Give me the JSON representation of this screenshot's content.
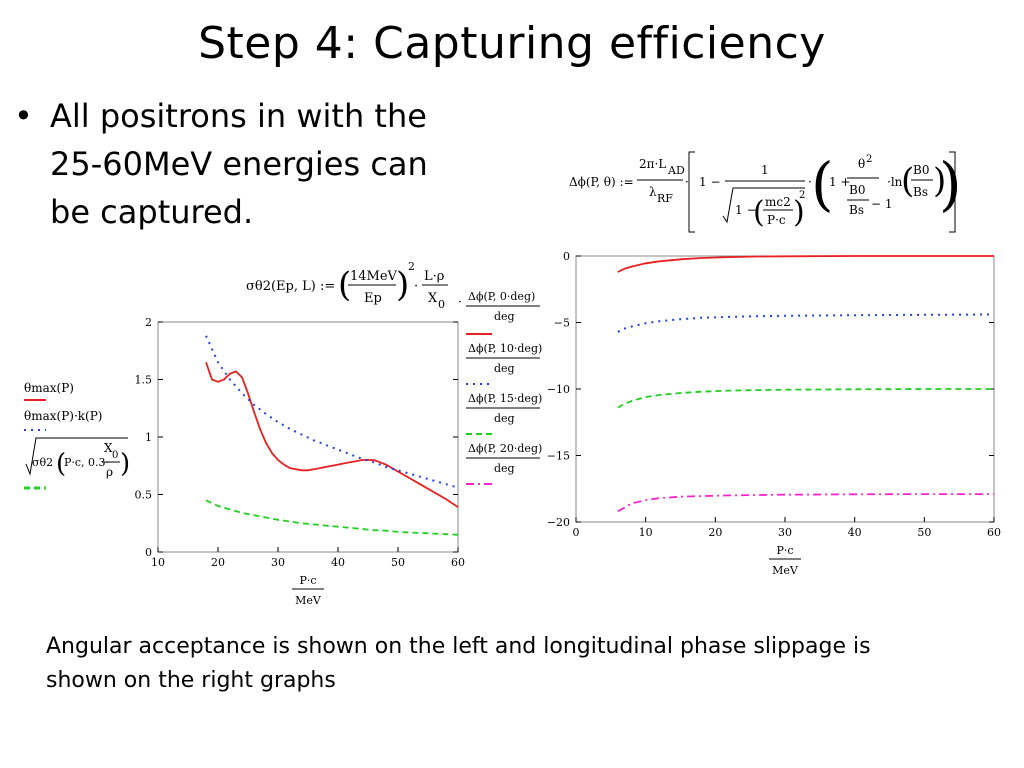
{
  "slide": {
    "title": "Step 4: Capturing efficiency",
    "bullet": "All positrons in with the 25-60MeV energies can be captured.",
    "caption": "Angular acceptance is shown on the left and longitudinal phase slippage is shown on the right graphs"
  },
  "formulas": {
    "sigma_lhs": "σθ2(Ep, L) :=",
    "sigma_num": "14MeV",
    "sigma_den": "Ep",
    "sigma_exp": "2",
    "sigma_dot": "·",
    "sigma_lnum": "L·ρ",
    "sigma_lden": "X",
    "sigma_lsub": "0",
    "dphi_lhs": "Δϕ(P, θ) :=",
    "dphi_num": "2π·L",
    "dphi_num_sub": "AD",
    "dphi_den": "λ",
    "dphi_den_sub": "RF",
    "dphi_one": "1 −",
    "dphi_inner_num": "1",
    "dphi_inner_one": "1 −",
    "dphi_mc2": "mc2",
    "dphi_pc": "P·c",
    "dphi_exp2": "2",
    "dphi_oneplus": "1 +",
    "dphi_theta": "θ",
    "dphi_theta_exp": "2",
    "dphi_b0": "B0",
    "dphi_bs": "Bs",
    "dphi_minus1": "− 1",
    "dphi_ln": "·ln",
    "dphi_b0b": "B0",
    "dphi_bsb": "Bs"
  },
  "left_legend": {
    "entries": [
      {
        "label": "θmax(P)",
        "color": "#e8201f",
        "dash": "solid"
      },
      {
        "label": "θmax(P)·k(P)",
        "color": "#2040e8",
        "dash": "dotted"
      },
      {
        "label": "σθ2(P·c, 0.3·X0/ρ)",
        "color": "#20d020",
        "dash": "dashed"
      }
    ],
    "sqrt_lhs": "σθ2",
    "sqrt_args": "P·c, 0.3·",
    "sqrt_xnum": "X",
    "sqrt_xsub": "0",
    "sqrt_xden": "ρ"
  },
  "right_legend": {
    "entries": [
      {
        "num": "Δϕ(P, 0·deg)",
        "den": "deg",
        "color": "#e8201f",
        "dash": "solid"
      },
      {
        "num": "Δϕ(P, 10·deg)",
        "den": "deg",
        "color": "#2040e8",
        "dash": "dotted"
      },
      {
        "num": "Δϕ(P, 15·deg)",
        "den": "deg",
        "color": "#20d020",
        "dash": "dashed"
      },
      {
        "num": "Δϕ(P, 20·deg)",
        "den": "deg",
        "color": "#ff20d0",
        "dash": "dashdot"
      }
    ],
    "leading_dot": "·"
  },
  "chart_data": [
    {
      "type": "line",
      "xlabel_num": "P·c",
      "xlabel_den": "MeV",
      "xlim": [
        10,
        60
      ],
      "ylim": [
        0,
        2
      ],
      "xticks": [
        10,
        20,
        30,
        40,
        50,
        60
      ],
      "yticks": [
        0,
        0.5,
        1,
        1.5,
        2
      ],
      "series": [
        {
          "name": "θmax(P)",
          "color": "#e8201f",
          "dash": "solid",
          "x": [
            18,
            19,
            20,
            21,
            22,
            23,
            24,
            25,
            26,
            27,
            28,
            29,
            30,
            31,
            32,
            33,
            34,
            35,
            36,
            37,
            38,
            39,
            40,
            41,
            42,
            43,
            44,
            45,
            46,
            47,
            48,
            49,
            50,
            52,
            54,
            56,
            58,
            60
          ],
          "y": [
            1.65,
            1.5,
            1.48,
            1.5,
            1.55,
            1.57,
            1.52,
            1.38,
            1.22,
            1.07,
            0.95,
            0.86,
            0.8,
            0.76,
            0.73,
            0.72,
            0.71,
            0.71,
            0.72,
            0.73,
            0.74,
            0.75,
            0.76,
            0.77,
            0.78,
            0.79,
            0.8,
            0.8,
            0.8,
            0.78,
            0.76,
            0.73,
            0.7,
            0.64,
            0.58,
            0.52,
            0.46,
            0.39
          ]
        },
        {
          "name": "θmax(P)·k(P)",
          "color": "#2040e8",
          "dash": "dotted",
          "x": [
            18,
            20,
            22,
            24,
            26,
            28,
            30,
            32,
            34,
            36,
            38,
            40,
            42,
            44,
            46,
            48,
            50,
            52,
            54,
            56,
            58,
            60
          ],
          "y": [
            1.88,
            1.65,
            1.5,
            1.38,
            1.28,
            1.2,
            1.13,
            1.07,
            1.02,
            0.97,
            0.93,
            0.89,
            0.85,
            0.81,
            0.78,
            0.74,
            0.71,
            0.68,
            0.65,
            0.62,
            0.59,
            0.56
          ]
        },
        {
          "name": "σθ2(P·c, 0.3·X0/ρ)",
          "color": "#20d020",
          "dash": "dashed",
          "x": [
            18,
            20,
            22,
            24,
            26,
            28,
            30,
            32,
            34,
            36,
            38,
            40,
            42,
            44,
            46,
            48,
            50,
            52,
            54,
            56,
            58,
            60
          ],
          "y": [
            0.45,
            0.4,
            0.37,
            0.34,
            0.32,
            0.3,
            0.28,
            0.265,
            0.25,
            0.24,
            0.23,
            0.22,
            0.21,
            0.2,
            0.19,
            0.185,
            0.175,
            0.17,
            0.165,
            0.16,
            0.155,
            0.15
          ]
        }
      ]
    },
    {
      "type": "line",
      "xlabel_num": "P·c",
      "xlabel_den": "MeV",
      "xlim": [
        0,
        60
      ],
      "ylim": [
        -20,
        0
      ],
      "xticks": [
        0,
        10,
        20,
        30,
        40,
        50,
        60
      ],
      "yticks": [
        0,
        -5,
        -10,
        -15,
        -20
      ],
      "series": [
        {
          "name": "Δϕ(P, 0·deg)/deg",
          "color": "#e8201f",
          "dash": "solid",
          "x": [
            6,
            7,
            8,
            10,
            12,
            15,
            18,
            22,
            26,
            30,
            40,
            50,
            60
          ],
          "y": [
            -1.2,
            -0.95,
            -0.8,
            -0.55,
            -0.4,
            -0.25,
            -0.15,
            -0.08,
            -0.04,
            -0.02,
            0,
            0,
            0
          ]
        },
        {
          "name": "Δϕ(P, 10·deg)/deg",
          "color": "#2040e8",
          "dash": "dotted",
          "x": [
            6,
            7,
            8,
            10,
            12,
            15,
            18,
            22,
            26,
            30,
            40,
            50,
            60
          ],
          "y": [
            -5.7,
            -5.45,
            -5.3,
            -5.05,
            -4.9,
            -4.75,
            -4.65,
            -4.58,
            -4.53,
            -4.5,
            -4.45,
            -4.42,
            -4.4
          ]
        },
        {
          "name": "Δϕ(P, 15·deg)/deg",
          "color": "#20d020",
          "dash": "dashed",
          "x": [
            6,
            7,
            8,
            10,
            12,
            15,
            18,
            22,
            26,
            30,
            40,
            50,
            60
          ],
          "y": [
            -11.4,
            -11.1,
            -10.9,
            -10.6,
            -10.45,
            -10.3,
            -10.2,
            -10.12,
            -10.08,
            -10.05,
            -10.02,
            -10.0,
            -10.0
          ]
        },
        {
          "name": "Δϕ(P, 20·deg)/deg",
          "color": "#ff20d0",
          "dash": "dashdot",
          "x": [
            6,
            7,
            8,
            10,
            12,
            15,
            18,
            22,
            26,
            30,
            40,
            50,
            60
          ],
          "y": [
            -19.2,
            -18.9,
            -18.6,
            -18.35,
            -18.2,
            -18.1,
            -18.05,
            -18.0,
            -17.97,
            -17.95,
            -17.92,
            -17.9,
            -17.9
          ]
        }
      ]
    }
  ]
}
